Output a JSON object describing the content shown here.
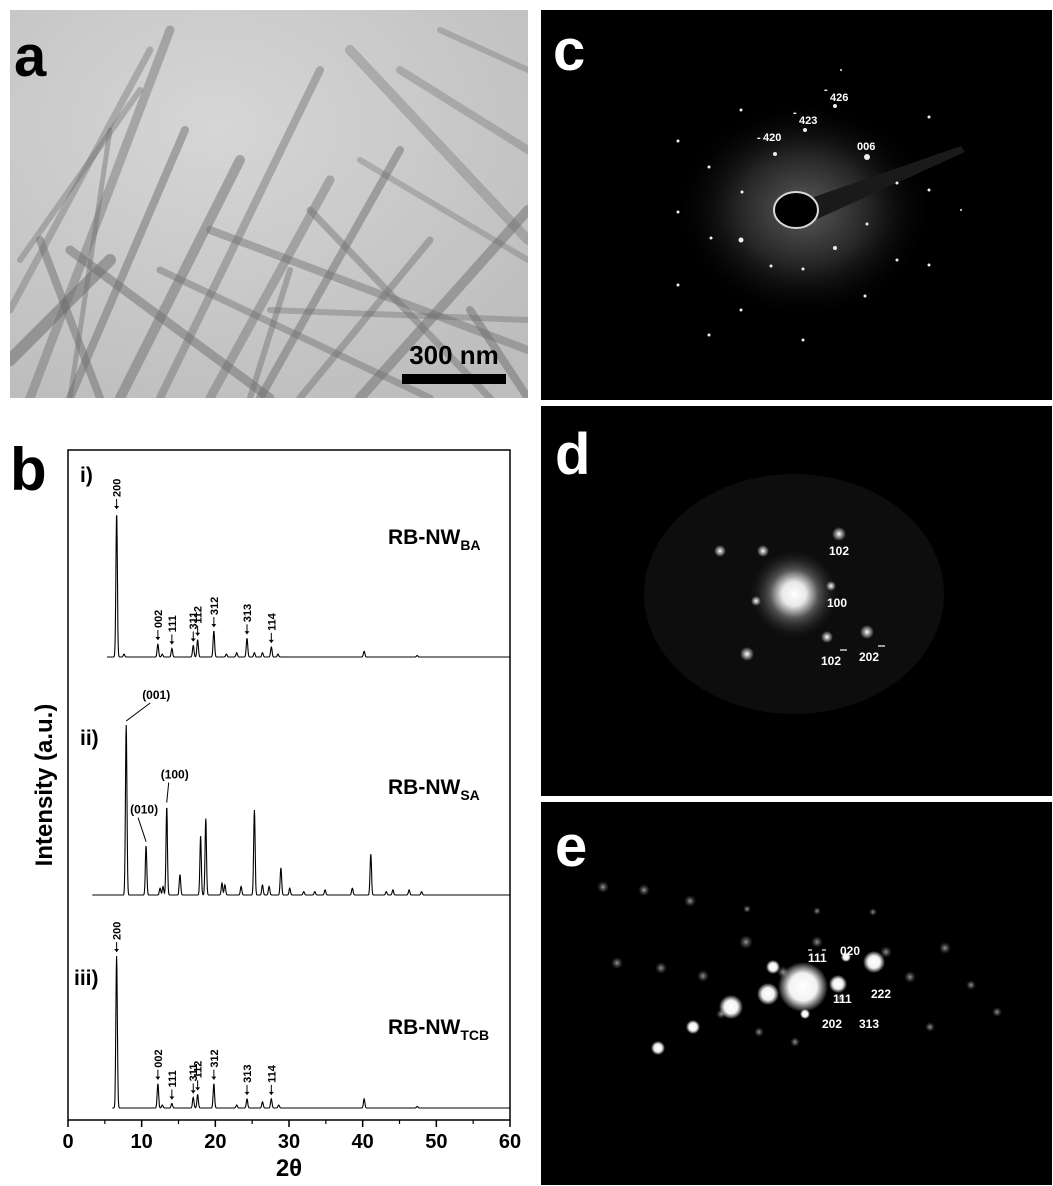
{
  "panels": {
    "a": {
      "label": "a",
      "scale_bar": "300 nm"
    },
    "b": {
      "label": "b"
    },
    "c": {
      "label": "c",
      "spots": {
        "s1": "-",
        "s1n": "420",
        "s2": "-",
        "s2n": "423",
        "s3": "-",
        "s3n": "426",
        "s4": "006"
      }
    },
    "d": {
      "label": "d",
      "spots": {
        "s1": "102",
        "s2": "100",
        "s3": "102",
        "s4": "202"
      }
    },
    "e": {
      "label": "e",
      "spots": {
        "s1": "111",
        "s2": "020",
        "s3": "111",
        "s4": "222",
        "s5": "202",
        "s6": "313"
      }
    }
  },
  "chart_data": {
    "type": "line",
    "xlabel": "2θ",
    "ylabel": "Intensity (a.u.)",
    "xlim": [
      0,
      60
    ],
    "xticks": [
      0,
      10,
      20,
      30,
      40,
      50,
      60
    ],
    "grid": false,
    "series": [
      {
        "name": "RB-NW",
        "name_sub": "BA",
        "roman": "i)",
        "peaks": [
          {
            "x": 6.6,
            "h": 1.0,
            "label": "200"
          },
          {
            "x": 12.2,
            "h": 0.09,
            "label": "002"
          },
          {
            "x": 14.1,
            "h": 0.06,
            "label": "111"
          },
          {
            "x": 17.0,
            "h": 0.08,
            "label": "311"
          },
          {
            "x": 17.6,
            "h": 0.12,
            "label": "112"
          },
          {
            "x": 19.8,
            "h": 0.18,
            "label": "312"
          },
          {
            "x": 24.3,
            "h": 0.13,
            "label": "313"
          },
          {
            "x": 27.6,
            "h": 0.07,
            "label": "114"
          },
          {
            "x": 7.6,
            "h": 0.02,
            "label": ""
          },
          {
            "x": 12.8,
            "h": 0.02,
            "label": ""
          },
          {
            "x": 21.5,
            "h": 0.02,
            "label": ""
          },
          {
            "x": 22.9,
            "h": 0.03,
            "label": ""
          },
          {
            "x": 25.3,
            "h": 0.03,
            "label": ""
          },
          {
            "x": 26.4,
            "h": 0.03,
            "label": ""
          },
          {
            "x": 28.5,
            "h": 0.02,
            "label": ""
          },
          {
            "x": 40.2,
            "h": 0.04,
            "label": ""
          },
          {
            "x": 47.4,
            "h": 0.01,
            "label": ""
          }
        ]
      },
      {
        "name": "RB-NW",
        "name_sub": "SA",
        "roman": "ii)",
        "peaks": [
          {
            "x": 7.9,
            "h": 1.0,
            "label": "(001)"
          },
          {
            "x": 10.6,
            "h": 0.29,
            "label": "(010)"
          },
          {
            "x": 13.4,
            "h": 0.52,
            "label": "(100)"
          },
          {
            "x": 12.5,
            "h": 0.04,
            "label": ""
          },
          {
            "x": 12.9,
            "h": 0.05,
            "label": ""
          },
          {
            "x": 15.2,
            "h": 0.12,
            "label": ""
          },
          {
            "x": 18.0,
            "h": 0.35,
            "label": ""
          },
          {
            "x": 18.7,
            "h": 0.45,
            "label": ""
          },
          {
            "x": 20.9,
            "h": 0.07,
            "label": ""
          },
          {
            "x": 21.3,
            "h": 0.06,
            "label": ""
          },
          {
            "x": 23.5,
            "h": 0.05,
            "label": ""
          },
          {
            "x": 25.3,
            "h": 0.5,
            "label": ""
          },
          {
            "x": 26.4,
            "h": 0.06,
            "label": ""
          },
          {
            "x": 27.3,
            "h": 0.05,
            "label": ""
          },
          {
            "x": 28.9,
            "h": 0.16,
            "label": ""
          },
          {
            "x": 30.1,
            "h": 0.04,
            "label": ""
          },
          {
            "x": 32.0,
            "h": 0.02,
            "label": ""
          },
          {
            "x": 33.5,
            "h": 0.02,
            "label": ""
          },
          {
            "x": 34.9,
            "h": 0.03,
            "label": ""
          },
          {
            "x": 38.6,
            "h": 0.04,
            "label": ""
          },
          {
            "x": 41.1,
            "h": 0.24,
            "label": ""
          },
          {
            "x": 43.2,
            "h": 0.02,
            "label": ""
          },
          {
            "x": 44.1,
            "h": 0.03,
            "label": ""
          },
          {
            "x": 46.3,
            "h": 0.03,
            "label": ""
          },
          {
            "x": 48.0,
            "h": 0.02,
            "label": ""
          }
        ]
      },
      {
        "name": "RB-NW",
        "name_sub": "TCB",
        "roman": "iii)",
        "peaks": [
          {
            "x": 6.6,
            "h": 1.0,
            "label": "200"
          },
          {
            "x": 12.2,
            "h": 0.16,
            "label": "002"
          },
          {
            "x": 14.1,
            "h": 0.03,
            "label": "111"
          },
          {
            "x": 17.0,
            "h": 0.07,
            "label": "311"
          },
          {
            "x": 17.6,
            "h": 0.09,
            "label": "112"
          },
          {
            "x": 19.8,
            "h": 0.16,
            "label": "312"
          },
          {
            "x": 24.3,
            "h": 0.06,
            "label": "313"
          },
          {
            "x": 27.6,
            "h": 0.06,
            "label": "114"
          },
          {
            "x": 12.8,
            "h": 0.02,
            "label": ""
          },
          {
            "x": 22.9,
            "h": 0.02,
            "label": ""
          },
          {
            "x": 26.4,
            "h": 0.04,
            "label": ""
          },
          {
            "x": 28.6,
            "h": 0.02,
            "label": ""
          },
          {
            "x": 40.2,
            "h": 0.06,
            "label": ""
          },
          {
            "x": 47.4,
            "h": 0.01,
            "label": ""
          }
        ]
      }
    ]
  }
}
